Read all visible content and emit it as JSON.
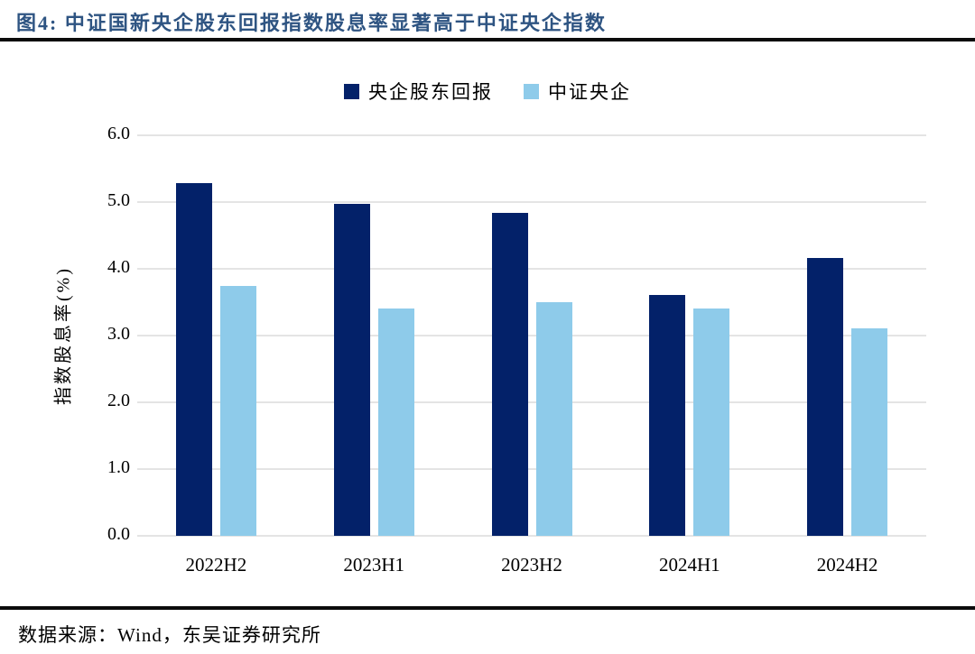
{
  "header": {
    "title": "图4:  中证国新央企股东回报指数股息率显著高于中证央企指数"
  },
  "footer": {
    "source": "数据来源：Wind，东吴证券研究所"
  },
  "colors": {
    "title_blue": "#2e5482",
    "series_dark": "#032169",
    "series_light": "#8ecbea",
    "gridline": "#e4e4e4",
    "divider": "#0b0b0b"
  },
  "chart_data": {
    "type": "bar",
    "categories": [
      "2022H2",
      "2023H1",
      "2023H2",
      "2024H1",
      "2024H2"
    ],
    "series": [
      {
        "name": "央企股东回报",
        "color": "#032169",
        "values": [
          5.28,
          4.97,
          4.84,
          3.61,
          4.16
        ]
      },
      {
        "name": "中证央企",
        "color": "#8ecbea",
        "values": [
          3.74,
          3.4,
          3.5,
          3.41,
          3.11
        ]
      }
    ],
    "title": "中证国新央企股东回报指数股息率显著高于中证央企指数",
    "xlabel": "",
    "ylabel": "指数股息率(%)",
    "ylim": [
      0,
      6
    ],
    "ytick_step": 1.0,
    "ytick_labels": [
      "0.0",
      "1.0",
      "2.0",
      "3.0",
      "4.0",
      "5.0",
      "6.0"
    ],
    "grid": true,
    "legend_position": "top-center"
  }
}
